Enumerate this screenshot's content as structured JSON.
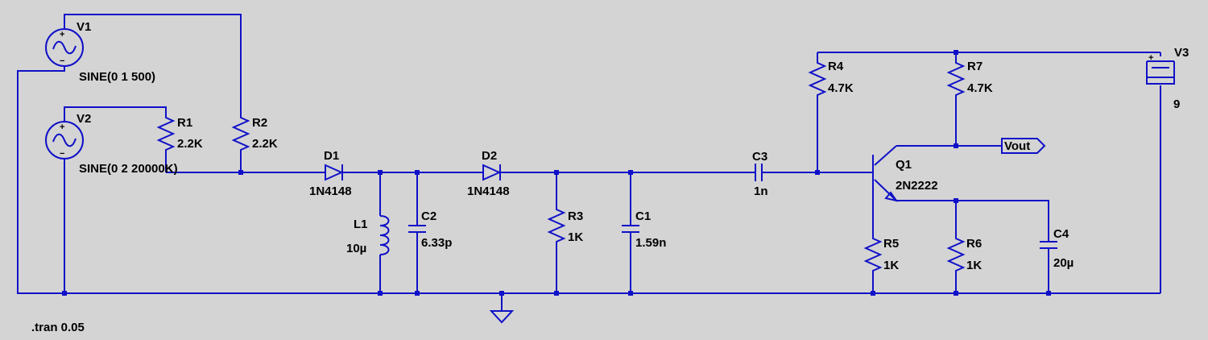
{
  "colors": {
    "background": "#d4d4d4",
    "wire": "#1010c8",
    "text": "#000000"
  },
  "sources": {
    "V1": {
      "name": "V1",
      "value": "SINE(0 1 500)"
    },
    "V2": {
      "name": "V2",
      "value": "SINE(0 2 20000K)"
    },
    "V3": {
      "name": "V3",
      "value": "9"
    }
  },
  "resistors": {
    "R1": {
      "name": "R1",
      "value": "2.2K"
    },
    "R2": {
      "name": "R2",
      "value": "2.2K"
    },
    "R3": {
      "name": "R3",
      "value": "1K"
    },
    "R4": {
      "name": "R4",
      "value": "4.7K"
    },
    "R5": {
      "name": "R5",
      "value": "1K"
    },
    "R6": {
      "name": "R6",
      "value": "1K"
    },
    "R7": {
      "name": "R7",
      "value": "4.7K"
    }
  },
  "capacitors": {
    "C1": {
      "name": "C1",
      "value": "1.59n"
    },
    "C2": {
      "name": "C2",
      "value": "6.33p"
    },
    "C3": {
      "name": "C3",
      "value": "1n"
    },
    "C4": {
      "name": "C4",
      "value": "20µ"
    }
  },
  "inductors": {
    "L1": {
      "name": "L1",
      "value": "10µ"
    }
  },
  "diodes": {
    "D1": {
      "name": "D1",
      "value": "1N4148"
    },
    "D2": {
      "name": "D2",
      "value": "1N4148"
    }
  },
  "transistors": {
    "Q1": {
      "name": "Q1",
      "value": "2N2222"
    }
  },
  "net_labels": {
    "vout": "Vout"
  },
  "directive": ".tran 0.05"
}
